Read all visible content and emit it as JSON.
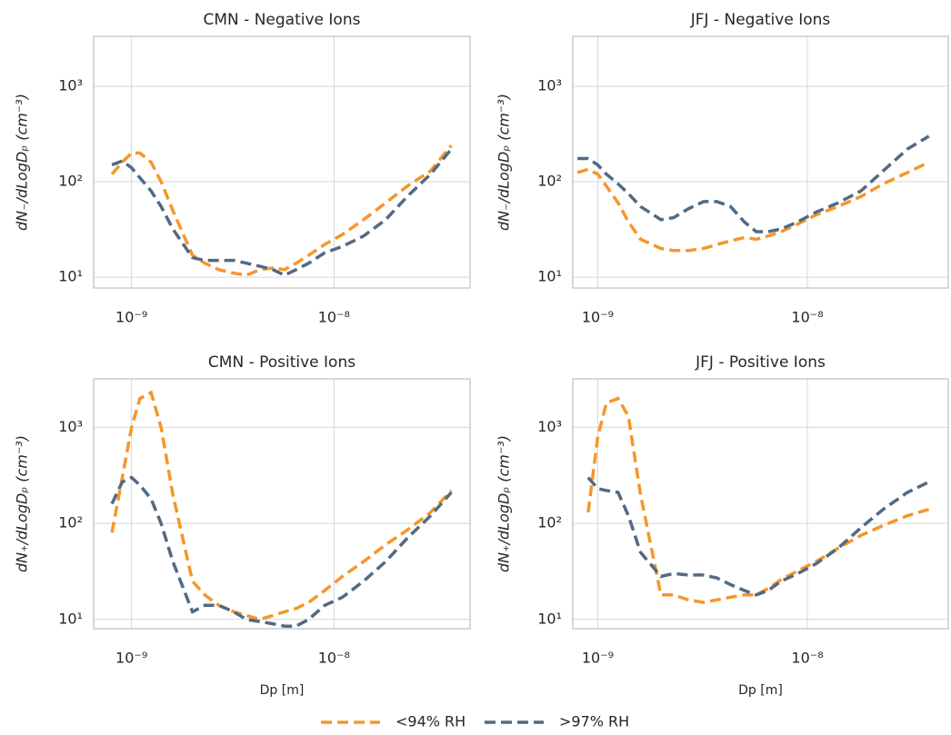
{
  "chart_data": [
    {
      "type": "line",
      "title": "CMN - Negative Ions",
      "ylabel": "dN₋/dLogDₚ (cm⁻³)",
      "log_x": true,
      "log_y": true,
      "grid": true,
      "legend": "bottom",
      "x": [
        8e-10,
        9e-10,
        1e-09,
        1.1e-09,
        1.25e-09,
        1.4e-09,
        1.6e-09,
        2e-09,
        2.3e-09,
        2.7e-09,
        3.2e-09,
        3.7e-09,
        4.3e-09,
        5e-09,
        5.7e-09,
        6.5e-09,
        7.5e-09,
        9e-09,
        1.1e-08,
        1.4e-08,
        1.8e-08,
        2.3e-08,
        3e-08,
        3.8e-08
      ],
      "series": [
        {
          "name": "<94% RH",
          "color": "#f7962a",
          "values": [
            120,
            160,
            200,
            200,
            160,
            100,
            50,
            17,
            14,
            12,
            11,
            10.5,
            12,
            12.5,
            12,
            14,
            17,
            22,
            28,
            40,
            60,
            90,
            130,
            240
          ]
        },
        {
          "name": ">97% RH",
          "color": "#526a82",
          "values": [
            150,
            165,
            140,
            110,
            80,
            55,
            32,
            16,
            15,
            15,
            15,
            14,
            13,
            12,
            10.5,
            12,
            14,
            18,
            21,
            27,
            40,
            70,
            120,
            220
          ]
        }
      ],
      "xlim": [
        6.5e-10,
        4.7e-08
      ],
      "xticks": [
        {
          "value": 1e-09,
          "label": "10⁻⁹"
        },
        {
          "value": 1e-08,
          "label": "10⁻⁸"
        }
      ],
      "ylim": [
        7.7,
        3340
      ],
      "yticks": [
        {
          "value": 10,
          "label": "10¹"
        },
        {
          "value": 100,
          "label": "10²"
        },
        {
          "value": 1000,
          "label": "10³"
        }
      ]
    },
    {
      "type": "line",
      "title": "JFJ - Negative Ions",
      "ylabel": "dN₋/dLogDₚ (cm⁻³)",
      "log_x": true,
      "log_y": true,
      "grid": true,
      "x": [
        8e-10,
        9e-10,
        1e-09,
        1.1e-09,
        1.25e-09,
        1.4e-09,
        1.6e-09,
        2e-09,
        2.3e-09,
        2.7e-09,
        3.2e-09,
        3.7e-09,
        4.3e-09,
        5e-09,
        5.7e-09,
        6.5e-09,
        7.5e-09,
        9e-09,
        1.1e-08,
        1.4e-08,
        1.8e-08,
        2.3e-08,
        3e-08,
        3.8e-08
      ],
      "series": [
        {
          "name": "<94% RH",
          "color": "#f7962a",
          "values": [
            125,
            135,
            120,
            90,
            60,
            38,
            25,
            20,
            19,
            19,
            20,
            22,
            24,
            26,
            25,
            27,
            30,
            36,
            45,
            55,
            70,
            95,
            125,
            160
          ]
        },
        {
          "name": ">97% RH",
          "color": "#526a82",
          "values": [
            175,
            175,
            150,
            120,
            95,
            75,
            55,
            40,
            42,
            52,
            62,
            62,
            55,
            38,
            30,
            30,
            32,
            38,
            48,
            60,
            80,
            130,
            220,
            300
          ]
        }
      ],
      "xlim": [
        7.6e-10,
        4.7e-08
      ],
      "xticks": [
        {
          "value": 1e-09,
          "label": "10⁻⁹"
        },
        {
          "value": 1e-08,
          "label": "10⁻⁸"
        }
      ],
      "ylim": [
        7.7,
        3340
      ],
      "yticks": [
        {
          "value": 10,
          "label": "10¹"
        },
        {
          "value": 100,
          "label": "10²"
        },
        {
          "value": 1000,
          "label": "10³"
        }
      ]
    },
    {
      "type": "line",
      "title": "CMN - Positive Ions",
      "ylabel": "dN₊/dLogDₚ (cm⁻³)",
      "xlabel": "Dp [m]",
      "log_x": true,
      "log_y": true,
      "grid": true,
      "x": [
        8e-10,
        9e-10,
        1e-09,
        1.1e-09,
        1.25e-09,
        1.4e-09,
        1.6e-09,
        2e-09,
        2.3e-09,
        2.7e-09,
        3.2e-09,
        3.7e-09,
        4.3e-09,
        5e-09,
        5.7e-09,
        6.5e-09,
        7.5e-09,
        9e-09,
        1.1e-08,
        1.4e-08,
        1.8e-08,
        2.3e-08,
        3e-08,
        3.8e-08
      ],
      "series": [
        {
          "name": "<94% RH",
          "color": "#f7962a",
          "values": [
            80,
            300,
            1000,
            2000,
            2300,
            1000,
            200,
            25,
            18,
            14,
            12,
            11,
            10,
            11,
            12,
            13,
            15,
            20,
            28,
            40,
            60,
            85,
            130,
            220
          ]
        },
        {
          "name": ">97% RH",
          "color": "#526a82",
          "values": [
            160,
            270,
            300,
            250,
            180,
            100,
            40,
            12,
            14,
            14,
            12,
            10,
            9.5,
            9,
            8.5,
            8.5,
            10,
            14,
            17,
            25,
            40,
            70,
            120,
            210
          ]
        }
      ],
      "xlim": [
        6.5e-10,
        4.7e-08
      ],
      "xticks": [
        {
          "value": 1e-09,
          "label": "10⁻⁹"
        },
        {
          "value": 1e-08,
          "label": "10⁻⁸"
        }
      ],
      "ylim": [
        8,
        3200
      ],
      "yticks": [
        {
          "value": 10,
          "label": "10¹"
        },
        {
          "value": 100,
          "label": "10²"
        },
        {
          "value": 1000,
          "label": "10³"
        }
      ]
    },
    {
      "type": "line",
      "title": "JFJ - Positive Ions",
      "ylabel": "dN₊/dLogDₚ (cm⁻³)",
      "xlabel": "Dp [m]",
      "log_x": true,
      "log_y": true,
      "grid": true,
      "x": [
        9e-10,
        1e-09,
        1.1e-09,
        1.25e-09,
        1.4e-09,
        1.6e-09,
        2e-09,
        2.3e-09,
        2.7e-09,
        3.2e-09,
        3.7e-09,
        4.3e-09,
        5e-09,
        5.7e-09,
        6.5e-09,
        7.5e-09,
        9e-09,
        1.1e-08,
        1.4e-08,
        1.8e-08,
        2.3e-08,
        3e-08,
        3.8e-08
      ],
      "series": [
        {
          "name": "<94% RH",
          "color": "#f7962a",
          "values": [
            130,
            800,
            1800,
            2000,
            1300,
            200,
            18,
            18,
            16,
            15,
            16,
            17,
            18,
            18,
            21,
            26,
            32,
            40,
            55,
            75,
            95,
            120,
            140
          ]
        },
        {
          "name": ">97% RH",
          "color": "#526a82",
          "values": [
            300,
            230,
            220,
            210,
            120,
            50,
            28,
            30,
            29,
            29,
            27,
            23,
            20,
            18,
            20,
            25,
            30,
            38,
            55,
            90,
            140,
            210,
            270
          ]
        }
      ],
      "xlim": [
        7.6e-10,
        4.7e-08
      ],
      "xticks": [
        {
          "value": 1e-09,
          "label": "10⁻⁹"
        },
        {
          "value": 1e-08,
          "label": "10⁻⁸"
        }
      ],
      "ylim": [
        8,
        3200
      ],
      "yticks": [
        {
          "value": 10,
          "label": "10¹"
        },
        {
          "value": 100,
          "label": "10²"
        },
        {
          "value": 1000,
          "label": "10³"
        }
      ]
    }
  ]
}
